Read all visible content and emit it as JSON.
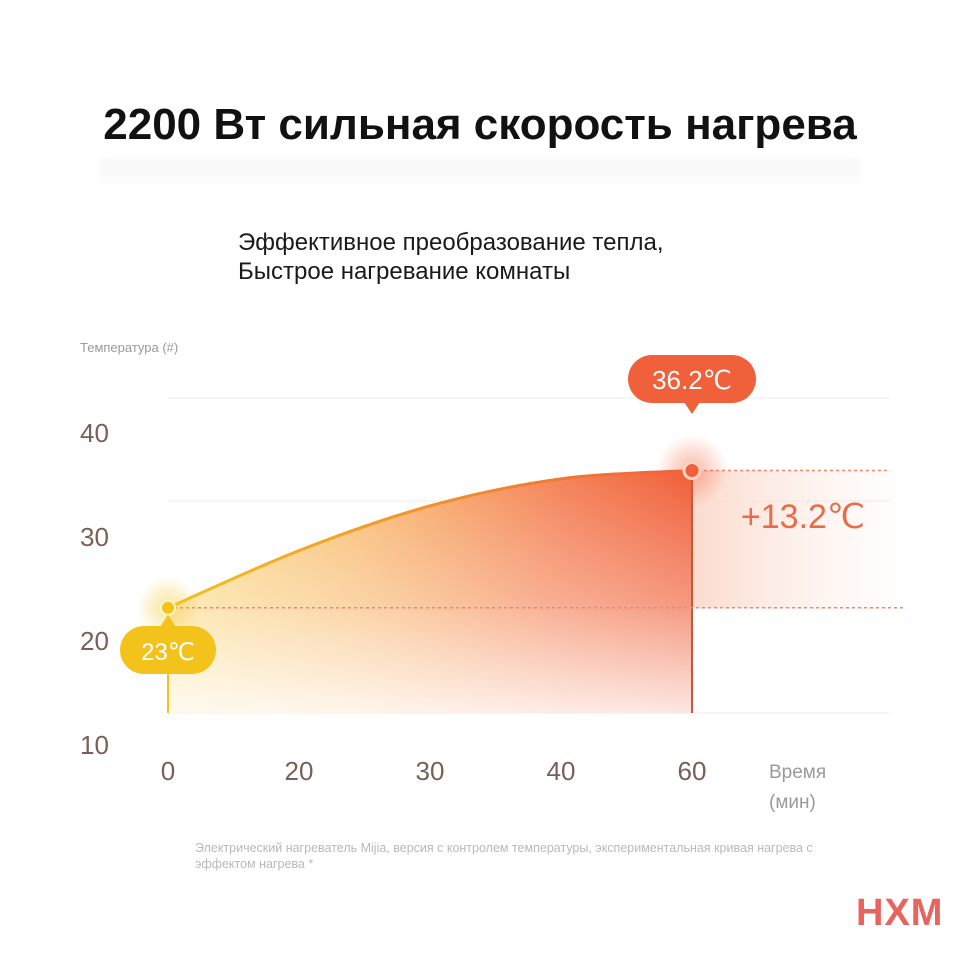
{
  "title": "2200 Вт сильная скорость нагрева",
  "subtitle": {
    "line1": "Эффективное преобразование тепла,",
    "line2": "Быстрое нагревание комнаты"
  },
  "footnote": "Электрический нагреватель Mijia, версия с контролем температуры, экспериментальная кривая нагрева с эффектом нагрева *",
  "watermark": "HXM",
  "colors": {
    "start": "#f3c21b",
    "end": "#f0603a",
    "axis_text": "#7a5f55",
    "delta_text": "#ea6b48"
  },
  "chart_data": {
    "type": "area",
    "ylabel": "Температура (#)",
    "xlabel_line1": "Время",
    "xlabel_line2": "(мин)",
    "x_ticks": [
      "0",
      "20",
      "30",
      "40",
      "60"
    ],
    "y_ticks": [
      "40",
      "30",
      "20",
      "10"
    ],
    "ylim": [
      10,
      40
    ],
    "points": [
      {
        "x": 0,
        "y": 23
      },
      {
        "x": 15,
        "y": 28.5
      },
      {
        "x": 30,
        "y": 32.8
      },
      {
        "x": 45,
        "y": 35.4
      },
      {
        "x": 60,
        "y": 36.2
      }
    ],
    "start_label": "23℃",
    "end_label": "36.2℃",
    "delta_label": "+13.2℃",
    "grid": true
  }
}
